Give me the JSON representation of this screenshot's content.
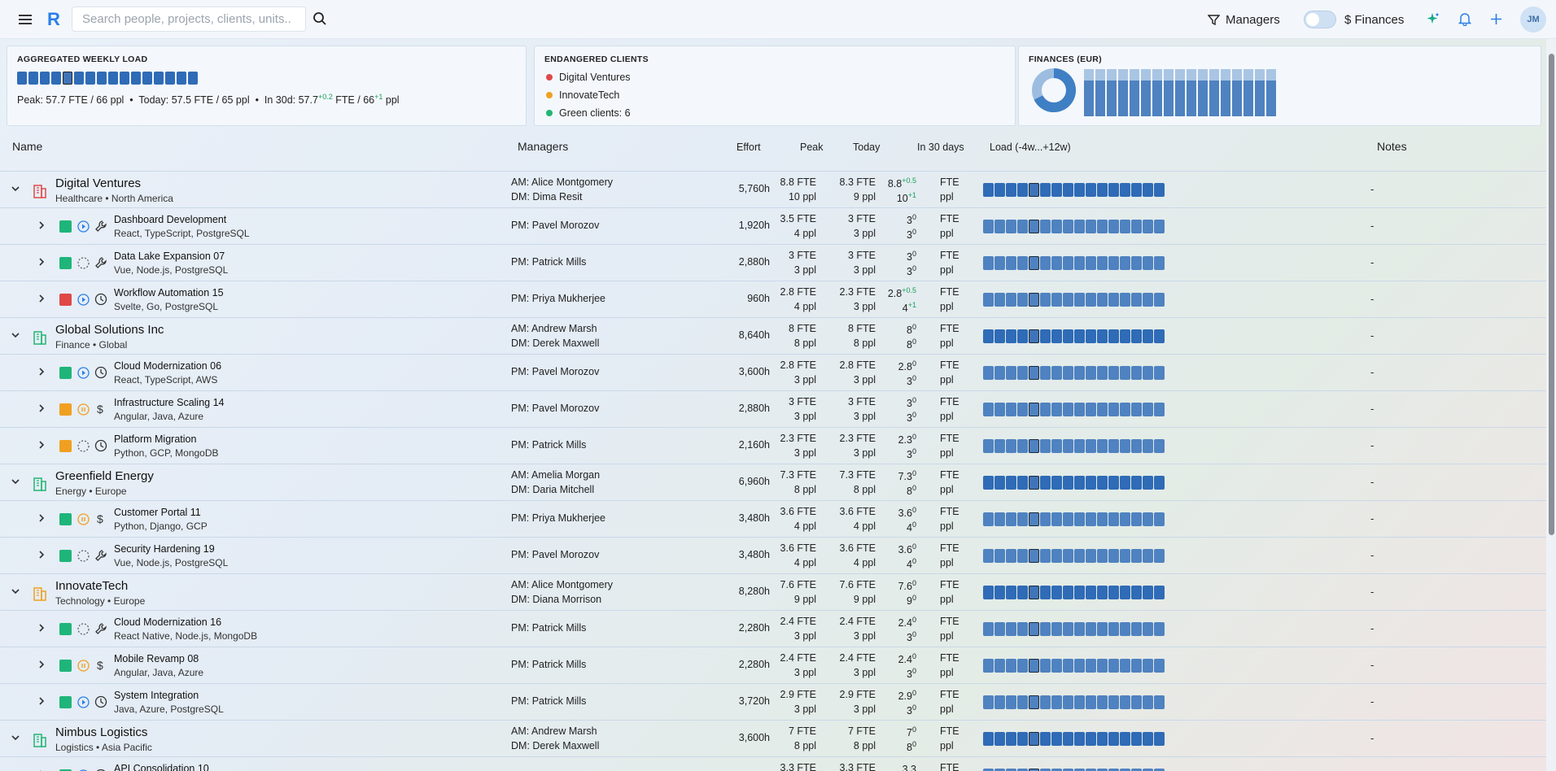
{
  "header": {
    "search_placeholder": "Search people, projects, clients, units..",
    "managers_label": "Managers",
    "finances_label": "$ Finances",
    "avatar_initials": "JM",
    "logo": "R"
  },
  "cards": {
    "load": {
      "title": "AGGREGATED WEEKLY LOAD",
      "peak": "Peak: 57.7 FTE / 66 ppl",
      "today": "Today: 57.5 FTE / 65 ppl",
      "in30_prefix": "In 30d: 57.7",
      "in30_sup1": "+0.2",
      "in30_mid": "FTE / 66",
      "in30_sup2": "+1",
      "in30_suffix": "ppl",
      "sep": "•"
    },
    "endangered": {
      "title": "ENDANGERED CLIENTS",
      "items": [
        {
          "label": "Digital Ventures",
          "color": "#e04848"
        },
        {
          "label": "InnovateTech",
          "color": "#f0a020"
        },
        {
          "label": "Green clients: 6",
          "color": "#22b573"
        }
      ]
    },
    "finances": {
      "title": "FINANCES (EUR)"
    }
  },
  "columns": {
    "name": "Name",
    "managers": "Managers",
    "effort": "Effort",
    "peak": "Peak",
    "today": "Today",
    "in30": "In 30 days",
    "load": "Load (-4w...+12w)",
    "notes": "Notes"
  },
  "rows": [
    {
      "kind": "client",
      "name": "Digital Ventures",
      "sub": "Healthcare • North America",
      "color": "#e04848",
      "m1": "AM: Alice Montgomery",
      "m2": "DM: Dima Resit",
      "effort": "5,760h",
      "peak1": "8.8 FTE",
      "peak2": "10 ppl",
      "today1": "8.3 FTE",
      "today2": "9 ppl",
      "in1": "8.8",
      "s1": "+0.5",
      "in2": "10",
      "s2": "+1",
      "notes": "-"
    },
    {
      "kind": "project",
      "name": "Dashboard Development",
      "sub": "React, TypeScript, PostgreSQL",
      "sq": "#1fb57a",
      "status": "play",
      "type": "wrench",
      "m1": "PM: Pavel Morozov",
      "effort": "1,920h",
      "peak1": "3.5 FTE",
      "peak2": "4 ppl",
      "today1": "3 FTE",
      "today2": "3 ppl",
      "in1": "3",
      "s1": "0",
      "in2": "3",
      "s2": "0",
      "notes": "-"
    },
    {
      "kind": "project",
      "name": "Data Lake Expansion 07",
      "sub": "Vue, Node.js, PostgreSQL",
      "sq": "#1fb57a",
      "status": "dashed",
      "type": "wrench",
      "m1": "PM: Patrick Mills",
      "effort": "2,880h",
      "peak1": "3 FTE",
      "peak2": "3 ppl",
      "today1": "3 FTE",
      "today2": "3 ppl",
      "in1": "3",
      "s1": "0",
      "in2": "3",
      "s2": "0",
      "notes": "-"
    },
    {
      "kind": "project",
      "name": "Workflow Automation 15",
      "sub": "Svelte, Go, PostgreSQL",
      "sq": "#e04848",
      "status": "play",
      "type": "clock",
      "m1": "PM: Priya Mukherjee",
      "effort": "960h",
      "peak1": "2.8 FTE",
      "peak2": "4 ppl",
      "today1": "2.3 FTE",
      "today2": "3 ppl",
      "in1": "2.8",
      "s1": "+0.5",
      "in2": "4",
      "s2": "+1",
      "notes": "-"
    },
    {
      "kind": "client",
      "name": "Global Solutions Inc",
      "sub": "Finance • Global",
      "color": "#22b573",
      "m1": "AM: Andrew Marsh",
      "m2": "DM: Derek Maxwell",
      "effort": "8,640h",
      "peak1": "8 FTE",
      "peak2": "8 ppl",
      "today1": "8 FTE",
      "today2": "8 ppl",
      "in1": "8",
      "s1": "0",
      "in2": "8",
      "s2": "0",
      "notes": "-"
    },
    {
      "kind": "project",
      "name": "Cloud Modernization 06",
      "sub": "React, TypeScript, AWS",
      "sq": "#1fb57a",
      "status": "play",
      "type": "clock",
      "m1": "PM: Pavel Morozov",
      "effort": "3,600h",
      "peak1": "2.8 FTE",
      "peak2": "3 ppl",
      "today1": "2.8 FTE",
      "today2": "3 ppl",
      "in1": "2.8",
      "s1": "0",
      "in2": "3",
      "s2": "0",
      "notes": "-"
    },
    {
      "kind": "project",
      "name": "Infrastructure Scaling 14",
      "sub": "Angular, Java, Azure",
      "sq": "#f0a020",
      "status": "pause",
      "type": "dollar",
      "m1": "PM: Pavel Morozov",
      "effort": "2,880h",
      "peak1": "3 FTE",
      "peak2": "3 ppl",
      "today1": "3 FTE",
      "today2": "3 ppl",
      "in1": "3",
      "s1": "0",
      "in2": "3",
      "s2": "0",
      "notes": "-"
    },
    {
      "kind": "project",
      "name": "Platform Migration",
      "sub": "Python, GCP, MongoDB",
      "sq": "#f0a020",
      "status": "dashed",
      "type": "clock",
      "m1": "PM: Patrick Mills",
      "effort": "2,160h",
      "peak1": "2.3 FTE",
      "peak2": "3 ppl",
      "today1": "2.3 FTE",
      "today2": "3 ppl",
      "in1": "2.3",
      "s1": "0",
      "in2": "3",
      "s2": "0",
      "notes": "-"
    },
    {
      "kind": "client",
      "name": "Greenfield Energy",
      "sub": "Energy • Europe",
      "color": "#22b573",
      "m1": "AM: Amelia Morgan",
      "m2": "DM: Daria Mitchell",
      "effort": "6,960h",
      "peak1": "7.3 FTE",
      "peak2": "8 ppl",
      "today1": "7.3 FTE",
      "today2": "8 ppl",
      "in1": "7.3",
      "s1": "0",
      "in2": "8",
      "s2": "0",
      "notes": "-"
    },
    {
      "kind": "project",
      "name": "Customer Portal 11",
      "sub": "Python, Django, GCP",
      "sq": "#1fb57a",
      "status": "pause",
      "type": "dollar",
      "m1": "PM: Priya Mukherjee",
      "effort": "3,480h",
      "peak1": "3.6 FTE",
      "peak2": "4 ppl",
      "today1": "3.6 FTE",
      "today2": "4 ppl",
      "in1": "3.6",
      "s1": "0",
      "in2": "4",
      "s2": "0",
      "notes": "-"
    },
    {
      "kind": "project",
      "name": "Security Hardening 19",
      "sub": "Vue, Node.js, PostgreSQL",
      "sq": "#1fb57a",
      "status": "dashed",
      "type": "wrench",
      "m1": "PM: Pavel Morozov",
      "effort": "3,480h",
      "peak1": "3.6 FTE",
      "peak2": "4 ppl",
      "today1": "3.6 FTE",
      "today2": "4 ppl",
      "in1": "3.6",
      "s1": "0",
      "in2": "4",
      "s2": "0",
      "notes": "-"
    },
    {
      "kind": "client",
      "name": "InnovateTech",
      "sub": "Technology • Europe",
      "color": "#f0a020",
      "m1": "AM: Alice Montgomery",
      "m2": "DM: Diana Morrison",
      "effort": "8,280h",
      "peak1": "7.6 FTE",
      "peak2": "9 ppl",
      "today1": "7.6 FTE",
      "today2": "9 ppl",
      "in1": "7.6",
      "s1": "0",
      "in2": "9",
      "s2": "0",
      "notes": "-"
    },
    {
      "kind": "project",
      "name": "Cloud Modernization 16",
      "sub": "React Native, Node.js, MongoDB",
      "sq": "#1fb57a",
      "status": "dashed",
      "type": "wrench",
      "m1": "PM: Patrick Mills",
      "effort": "2,280h",
      "peak1": "2.4 FTE",
      "peak2": "3 ppl",
      "today1": "2.4 FTE",
      "today2": "3 ppl",
      "in1": "2.4",
      "s1": "0",
      "in2": "3",
      "s2": "0",
      "notes": "-"
    },
    {
      "kind": "project",
      "name": "Mobile Revamp 08",
      "sub": "Angular, Java, Azure",
      "sq": "#1fb57a",
      "status": "pause",
      "type": "dollar",
      "m1": "PM: Patrick Mills",
      "effort": "2,280h",
      "peak1": "2.4 FTE",
      "peak2": "3 ppl",
      "today1": "2.4 FTE",
      "today2": "3 ppl",
      "in1": "2.4",
      "s1": "0",
      "in2": "3",
      "s2": "0",
      "notes": "-"
    },
    {
      "kind": "project",
      "name": "System Integration",
      "sub": "Java, Azure, PostgreSQL",
      "sq": "#1fb57a",
      "status": "play",
      "type": "clock",
      "m1": "PM: Patrick Mills",
      "effort": "3,720h",
      "peak1": "2.9 FTE",
      "peak2": "3 ppl",
      "today1": "2.9 FTE",
      "today2": "3 ppl",
      "in1": "2.9",
      "s1": "0",
      "in2": "3",
      "s2": "0",
      "notes": "-"
    },
    {
      "kind": "client",
      "name": "Nimbus Logistics",
      "sub": "Logistics • Asia Pacific",
      "color": "#22b573",
      "m1": "AM: Andrew Marsh",
      "m2": "DM: Derek Maxwell",
      "effort": "3,600h",
      "peak1": "7 FTE",
      "peak2": "8 ppl",
      "today1": "7 FTE",
      "today2": "8 ppl",
      "in1": "7",
      "s1": "0",
      "in2": "8",
      "s2": "0",
      "notes": "-"
    },
    {
      "kind": "project",
      "name": "API Consolidation 10",
      "sub": "",
      "sq": "#1fb57a",
      "status": "play",
      "type": "clock",
      "m1": "",
      "effort": "",
      "peak1": "3.3 FTE",
      "peak2": "",
      "today1": "3.3 FTE",
      "today2": "",
      "in1": "3.3",
      "s1": "",
      "in2": "",
      "s2": "",
      "notes": ""
    }
  ],
  "units": {
    "fte": "FTE",
    "ppl": "ppl"
  }
}
